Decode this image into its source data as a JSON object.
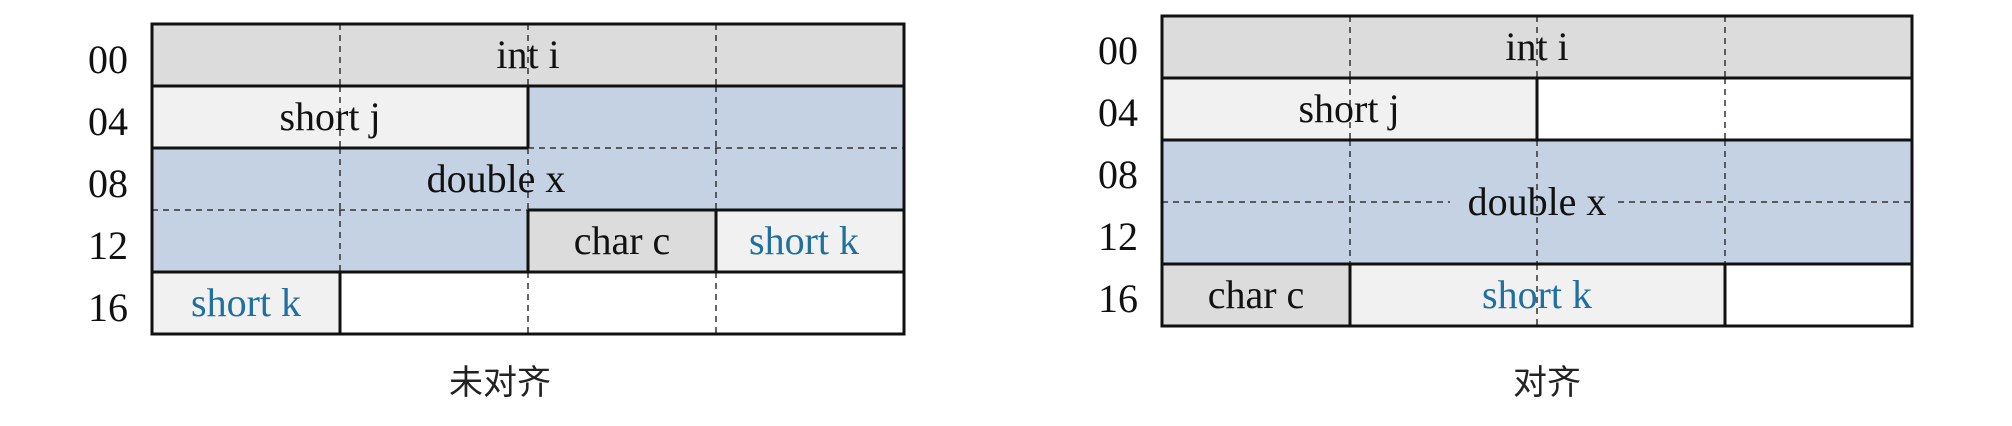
{
  "colors": {
    "int": "#dcdcdc",
    "short": "#f1f1f1",
    "double": "#c4d2e3",
    "char": "#dcdcdc",
    "empty": "#ffffff",
    "border": "#111111",
    "grid": "#333333",
    "highlight_text": "#1f6fa0",
    "text": "#111111"
  },
  "diagrams": [
    {
      "caption": "未对齐",
      "rows": [
        "00",
        "04",
        "08",
        "12",
        "16"
      ],
      "fields": [
        {
          "label": "int i",
          "row": 0,
          "start": 0,
          "end": 4,
          "type": "int"
        },
        {
          "label": "short j",
          "row": 1,
          "start": 0,
          "end": 2,
          "type": "short"
        },
        {
          "label": "double x",
          "row": 2,
          "start": 0,
          "end": 4,
          "type": "double"
        },
        {
          "label": "char c",
          "row": 3,
          "start": 2,
          "end": 3,
          "type": "char"
        },
        {
          "label": "short k",
          "row": 3,
          "start": 3,
          "end": 4,
          "type": "short",
          "highlight": true
        },
        {
          "label": "short k",
          "row": 4,
          "start": 0,
          "end": 1,
          "type": "short",
          "highlight": true
        }
      ]
    },
    {
      "caption": "对齐",
      "rows": [
        "00",
        "04",
        "08",
        "12",
        "16"
      ],
      "fields": [
        {
          "label": "int i",
          "row": 0,
          "start": 0,
          "end": 4,
          "type": "int"
        },
        {
          "label": "short j",
          "row": 1,
          "start": 0,
          "end": 2,
          "type": "short"
        },
        {
          "label": "double x",
          "row": 2,
          "start": 0,
          "end": 4,
          "type": "double",
          "span_rows": 2
        },
        {
          "label": "char c",
          "row": 4,
          "start": 0,
          "end": 1,
          "type": "char"
        },
        {
          "label": "short k",
          "row": 4,
          "start": 1,
          "end": 3,
          "type": "short",
          "highlight": true
        }
      ]
    }
  ]
}
